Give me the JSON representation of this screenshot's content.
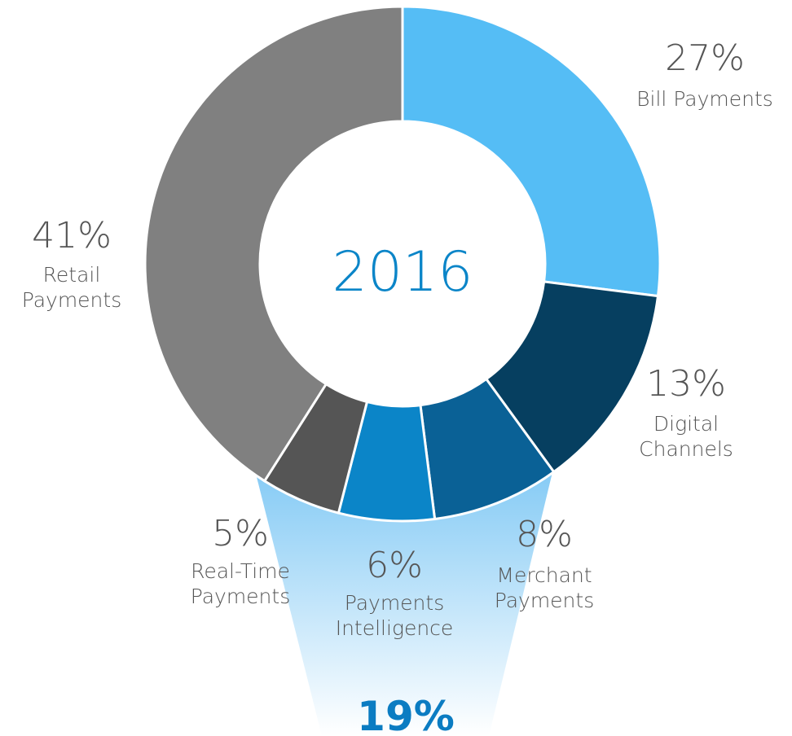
{
  "chart_data": {
    "type": "donut",
    "center_label": "2016",
    "categories": [
      "Bill Payments",
      "Digital Channels",
      "Merchant Payments",
      "Payments Intelligence",
      "Real-Time Payments",
      "Retail Payments"
    ],
    "values": [
      27,
      13,
      8,
      6,
      5,
      41
    ],
    "value_labels": [
      "27%",
      "13%",
      "8%",
      "6%",
      "5%",
      "41%"
    ],
    "colors": [
      "#55bdf5",
      "#063f60",
      "#0a6196",
      "#0b85c8",
      "#555555",
      "#808080"
    ],
    "highlight": {
      "value": 19,
      "label": "19%"
    }
  }
}
